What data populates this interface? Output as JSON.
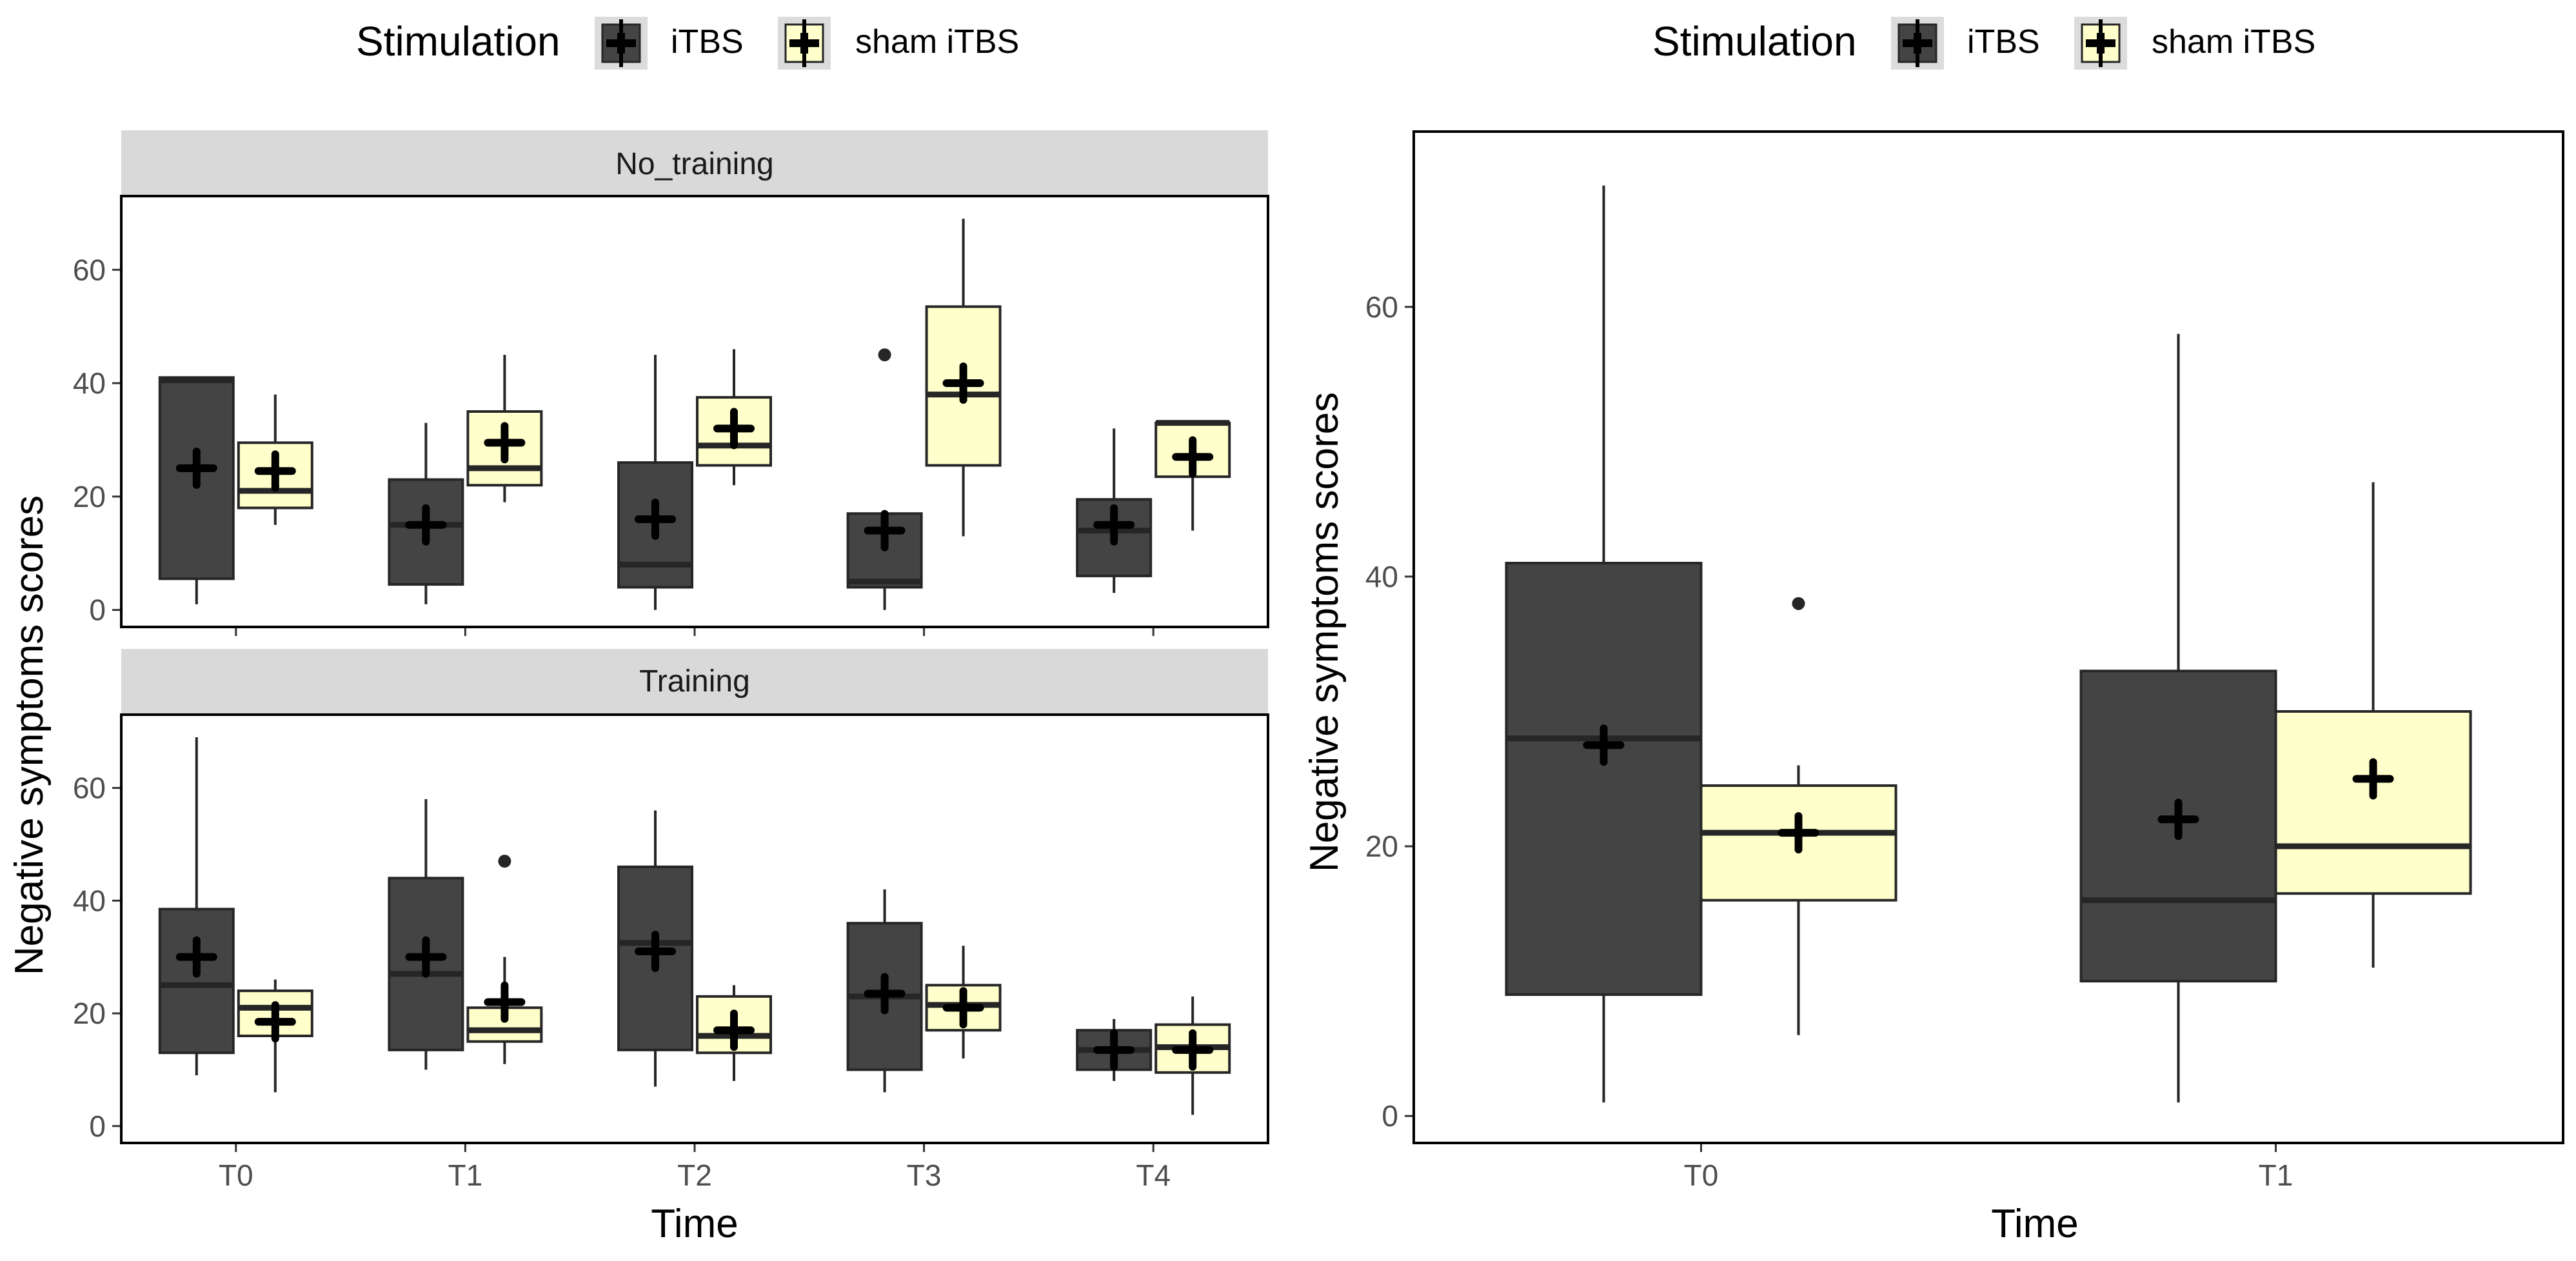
{
  "colors": {
    "itbs_fill": "#444444",
    "sham_fill": "#FFFFCC",
    "box_stroke": "#262626",
    "strip_fill": "#D9D9D9",
    "panel_border": "#000000",
    "tick_color": "#333333",
    "tick_label_color": "#4D4D4D",
    "mean_marker": "#000000"
  },
  "legend": {
    "title": "Stimulation",
    "items": [
      "iTBS",
      "sham iTBS"
    ],
    "key_icon": "boxplot-with-mean-cross-icon"
  },
  "axes": {
    "ylabel": "Negative symptoms scores",
    "xlabel": "Time"
  },
  "chart_data": [
    {
      "type": "boxplot",
      "title": "",
      "facet": "No_training",
      "xlabel": "",
      "ylabel": "Negative symptoms scores",
      "ylim": [
        -3,
        73
      ],
      "yticks": [
        0,
        20,
        40,
        60
      ],
      "categories": [
        "T0",
        "T1",
        "T2",
        "T3",
        "T4"
      ],
      "grid": false,
      "legend_position": "top",
      "series": [
        {
          "name": "iTBS",
          "boxes": [
            {
              "min": 1,
              "q1": 5.5,
              "median": 40.5,
              "q3": 41,
              "max": 41,
              "mean": 25,
              "outliers": []
            },
            {
              "min": 1,
              "q1": 4.5,
              "median": 15,
              "q3": 23,
              "max": 33,
              "mean": 15,
              "outliers": []
            },
            {
              "min": 0,
              "q1": 4,
              "median": 8,
              "q3": 26,
              "max": 45,
              "mean": 16,
              "outliers": []
            },
            {
              "min": 0,
              "q1": 4,
              "median": 5,
              "q3": 17,
              "max": 17,
              "mean": 14,
              "outliers": [
                45
              ]
            },
            {
              "min": 3,
              "q1": 6,
              "median": 14,
              "q3": 19.5,
              "max": 32,
              "mean": 15,
              "outliers": []
            }
          ]
        },
        {
          "name": "sham iTBS",
          "boxes": [
            {
              "min": 15,
              "q1": 18,
              "median": 21,
              "q3": 29.5,
              "max": 38,
              "mean": 24.5,
              "outliers": []
            },
            {
              "min": 19,
              "q1": 22,
              "median": 25,
              "q3": 35,
              "max": 45,
              "mean": 29.5,
              "outliers": []
            },
            {
              "min": 22,
              "q1": 25.5,
              "median": 29,
              "q3": 37.5,
              "max": 46,
              "mean": 32,
              "outliers": []
            },
            {
              "min": 13,
              "q1": 25.5,
              "median": 38,
              "q3": 53.5,
              "max": 69,
              "mean": 40,
              "outliers": []
            },
            {
              "min": 14,
              "q1": 23.5,
              "median": 33,
              "q3": 33,
              "max": 33,
              "mean": 27,
              "outliers": []
            }
          ]
        }
      ]
    },
    {
      "type": "boxplot",
      "title": "",
      "facet": "Training",
      "xlabel": "Time",
      "ylabel": "Negative symptoms scores",
      "ylim": [
        -3,
        73
      ],
      "yticks": [
        0,
        20,
        40,
        60
      ],
      "categories": [
        "T0",
        "T1",
        "T2",
        "T3",
        "T4"
      ],
      "grid": false,
      "legend_position": "top",
      "series": [
        {
          "name": "iTBS",
          "boxes": [
            {
              "min": 9,
              "q1": 13,
              "median": 25,
              "q3": 38.5,
              "max": 69,
              "mean": 30,
              "outliers": []
            },
            {
              "min": 10,
              "q1": 13.5,
              "median": 27,
              "q3": 44,
              "max": 58,
              "mean": 30,
              "outliers": []
            },
            {
              "min": 7,
              "q1": 13.5,
              "median": 32.5,
              "q3": 46,
              "max": 56,
              "mean": 31,
              "outliers": []
            },
            {
              "min": 6,
              "q1": 10,
              "median": 23,
              "q3": 36,
              "max": 42,
              "mean": 23.5,
              "outliers": []
            },
            {
              "min": 8,
              "q1": 10,
              "median": 13.5,
              "q3": 17,
              "max": 19,
              "mean": 13.5,
              "outliers": []
            }
          ]
        },
        {
          "name": "sham iTBS",
          "boxes": [
            {
              "min": 6,
              "q1": 16,
              "median": 21,
              "q3": 24,
              "max": 26,
              "mean": 18.5,
              "outliers": []
            },
            {
              "min": 11,
              "q1": 15,
              "median": 17,
              "q3": 21,
              "max": 30,
              "mean": 22,
              "outliers": [
                47
              ]
            },
            {
              "min": 8,
              "q1": 13,
              "median": 16,
              "q3": 23,
              "max": 25,
              "mean": 17,
              "outliers": []
            },
            {
              "min": 12,
              "q1": 17,
              "median": 21.5,
              "q3": 25,
              "max": 32,
              "mean": 21,
              "outliers": []
            },
            {
              "min": 2,
              "q1": 9.5,
              "median": 14,
              "q3": 18,
              "max": 23,
              "mean": 13.5,
              "outliers": []
            }
          ]
        }
      ]
    },
    {
      "type": "boxplot",
      "title": "",
      "facet": "",
      "xlabel": "Time",
      "ylabel": "Negative symptoms scores",
      "ylim": [
        -2,
        73
      ],
      "yticks": [
        0,
        20,
        40,
        60
      ],
      "categories": [
        "T0",
        "T1"
      ],
      "grid": false,
      "legend_position": "top",
      "series": [
        {
          "name": "iTBS",
          "boxes": [
            {
              "min": 1,
              "q1": 9,
              "median": 28,
              "q3": 41,
              "max": 69,
              "mean": 27.5,
              "outliers": []
            },
            {
              "min": 1,
              "q1": 10,
              "median": 16,
              "q3": 33,
              "max": 58,
              "mean": 22,
              "outliers": []
            }
          ]
        },
        {
          "name": "sham iTBS",
          "boxes": [
            {
              "min": 6,
              "q1": 16,
              "median": 21,
              "q3": 24.5,
              "max": 26,
              "mean": 21,
              "outliers": [
                38
              ]
            },
            {
              "min": 11,
              "q1": 16.5,
              "median": 20,
              "q3": 30,
              "max": 47,
              "mean": 25,
              "outliers": []
            }
          ]
        }
      ]
    }
  ]
}
